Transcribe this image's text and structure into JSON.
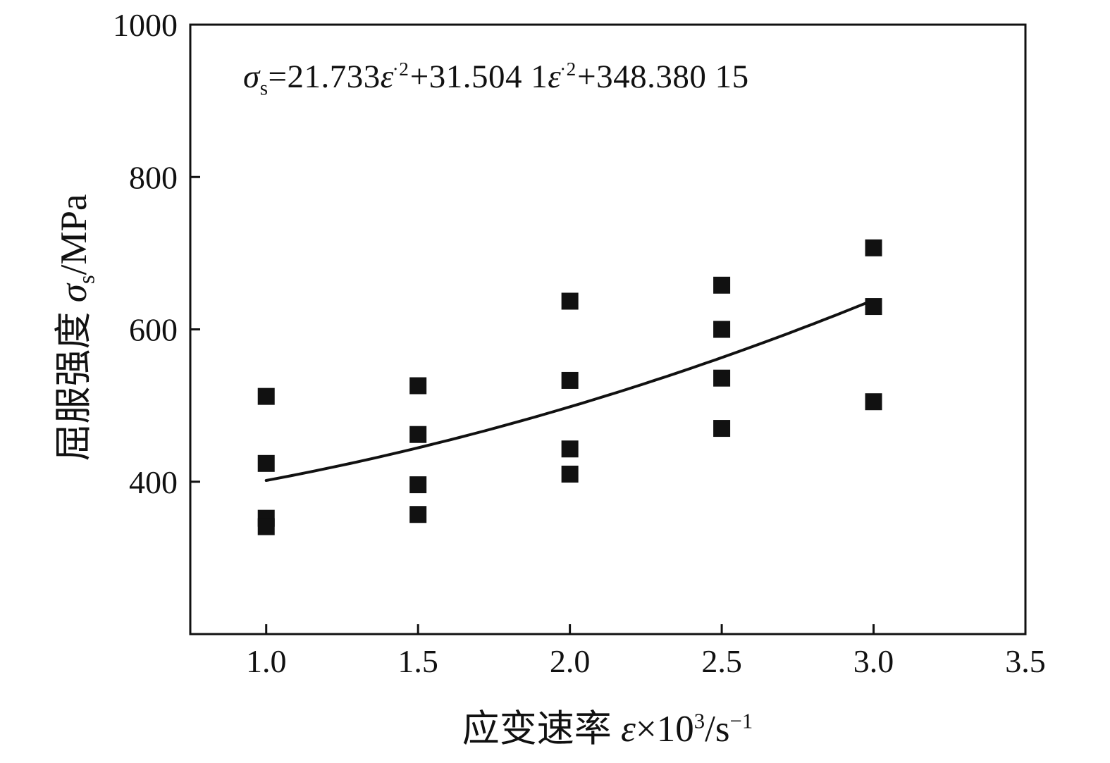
{
  "chart_data": {
    "type": "scatter",
    "title": "",
    "xlabel": "应变速率 ε×10³/s⁻¹",
    "ylabel": "屈服强度 σs/MPa",
    "annotation": "σs=21.733ε̇²+31.504 1ε̇²+348.380 15",
    "xlim": [
      0.75,
      3.5
    ],
    "ylim": [
      200,
      1000
    ],
    "xticks": [
      1.0,
      1.5,
      2.0,
      2.5,
      3.0,
      3.5
    ],
    "xtick_labels": [
      "1.0",
      "1.5",
      "2.0",
      "2.5",
      "3.0",
      "3.5"
    ],
    "yticks": [
      400,
      600,
      800,
      1000
    ],
    "ytick_labels": [
      "400",
      "600",
      "800",
      "1000"
    ],
    "grid": false,
    "legend": "none",
    "marker": "square",
    "points": [
      [
        1.0,
        512
      ],
      [
        1.0,
        424
      ],
      [
        1.0,
        352
      ],
      [
        1.0,
        341
      ],
      [
        1.5,
        526
      ],
      [
        1.5,
        462
      ],
      [
        1.5,
        396
      ],
      [
        1.5,
        357
      ],
      [
        2.0,
        637
      ],
      [
        2.0,
        533
      ],
      [
        2.0,
        443
      ],
      [
        2.0,
        410
      ],
      [
        2.5,
        658
      ],
      [
        2.5,
        600
      ],
      [
        2.5,
        536
      ],
      [
        2.5,
        470
      ],
      [
        3.0,
        707
      ],
      [
        3.0,
        630
      ],
      [
        3.0,
        505
      ]
    ],
    "fit": {
      "type": "quadratic",
      "coeffs": [
        21.733,
        31.5041,
        348.38015
      ],
      "x_range": [
        1.0,
        3.0
      ]
    },
    "colors": {
      "ink": "#111111",
      "background": "#ffffff"
    }
  },
  "equation": {
    "lhs": "σ",
    "lhs_sub": "s",
    "eq": "=21.733",
    "eps1": "ε",
    "eps1_sup": "·2",
    "mid": "+31.504 1",
    "eps2": "ε",
    "eps2_sup": "·2",
    "tail": "+348.380 15"
  },
  "ylabel_parts": {
    "prefix": "屈服强度 ",
    "symbol": "σ",
    "sub": "s",
    "unit": "/MPa"
  },
  "xlabel_parts": {
    "prefix": "应变速率 ",
    "symbol": "ε",
    "times": "×10",
    "exp": "3",
    "unit": "/s",
    "unit_exp": "−1"
  }
}
